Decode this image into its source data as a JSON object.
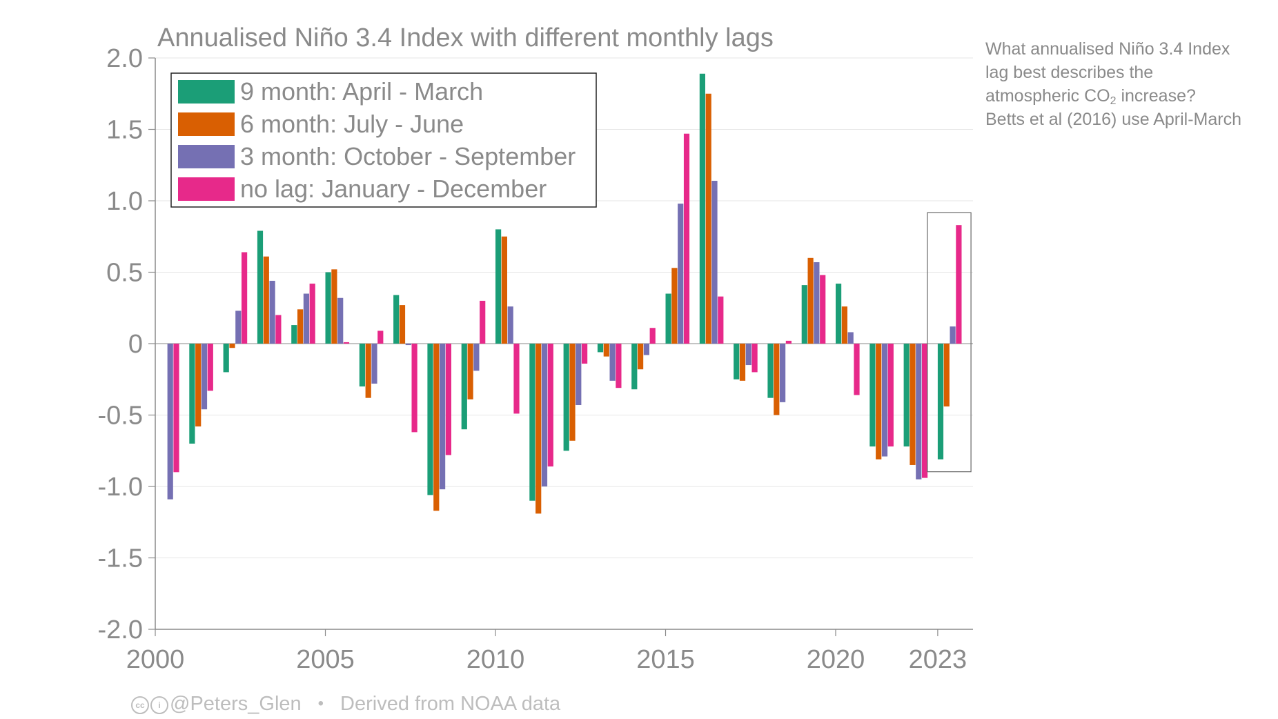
{
  "note": {
    "line1": "What annualised Niño 3.4 Index",
    "line2": "lag best describes the",
    "line3_pre": "atmospheric CO",
    "line3_sub": "2",
    "line3_post": " increase?",
    "line4": "Betts et al (2016) use April-March"
  },
  "credit": {
    "handle": "@Peters_Glen",
    "source": "Derived from NOAA data"
  },
  "chart_data": {
    "type": "bar",
    "title": "Annualised Niño 3.4 Index with different monthly lags",
    "xlabel": "",
    "ylabel": "",
    "ylim": [
      -2.0,
      2.0
    ],
    "yticks": [
      "2.0",
      "1.5",
      "1.0",
      "0.5",
      "0",
      "-0.5",
      "-1.0",
      "-1.5",
      "-2.0"
    ],
    "ytick_values": [
      2.0,
      1.5,
      1.0,
      0.5,
      0,
      -0.5,
      -1.0,
      -1.5,
      -2.0
    ],
    "xticks": [
      "2000",
      "2005",
      "2010",
      "2015",
      "2020",
      "2023"
    ],
    "xtick_values": [
      2000,
      2005,
      2010,
      2015,
      2020,
      2023
    ],
    "grid": true,
    "legend_position": "top-left",
    "highlight": {
      "category": 2023,
      "description": "boxed"
    },
    "categories": [
      2000,
      2001,
      2002,
      2003,
      2004,
      2005,
      2006,
      2007,
      2008,
      2009,
      2010,
      2011,
      2012,
      2013,
      2014,
      2015,
      2016,
      2017,
      2018,
      2019,
      2020,
      2021,
      2022,
      2023
    ],
    "series": [
      {
        "name": "9 month: April - March",
        "color": "#1b9e77",
        "values": [
          null,
          -0.7,
          -0.2,
          0.79,
          0.13,
          0.5,
          -0.3,
          0.34,
          -1.06,
          -0.6,
          0.8,
          -1.1,
          -0.75,
          -0.06,
          -0.32,
          0.35,
          1.89,
          -0.25,
          -0.38,
          0.41,
          0.42,
          -0.72,
          -0.72,
          -0.81
        ]
      },
      {
        "name": "6 month: July - June",
        "color": "#d95f02",
        "values": [
          null,
          -0.58,
          -0.03,
          0.61,
          0.24,
          0.52,
          -0.38,
          0.27,
          -1.17,
          -0.39,
          0.75,
          -1.19,
          -0.68,
          -0.09,
          -0.18,
          0.53,
          1.75,
          -0.26,
          -0.5,
          0.6,
          0.26,
          -0.81,
          -0.85,
          -0.44
        ]
      },
      {
        "name": "3 month: October - September",
        "color": "#7570b3",
        "values": [
          -1.09,
          -0.46,
          0.23,
          0.44,
          0.35,
          0.32,
          -0.28,
          -0.01,
          -1.02,
          -0.19,
          0.26,
          -1.0,
          -0.43,
          -0.26,
          -0.08,
          0.98,
          1.14,
          -0.15,
          -0.41,
          0.57,
          0.08,
          -0.79,
          -0.95,
          0.12
        ]
      },
      {
        "name": "no lag: January - December",
        "color": "#e7298a",
        "values": [
          -0.9,
          -0.33,
          0.64,
          0.2,
          0.42,
          0.01,
          0.09,
          -0.62,
          -0.78,
          0.3,
          -0.49,
          -0.86,
          -0.14,
          -0.31,
          0.11,
          1.47,
          0.33,
          -0.2,
          0.02,
          0.48,
          -0.36,
          -0.72,
          -0.94,
          0.83
        ]
      }
    ]
  }
}
